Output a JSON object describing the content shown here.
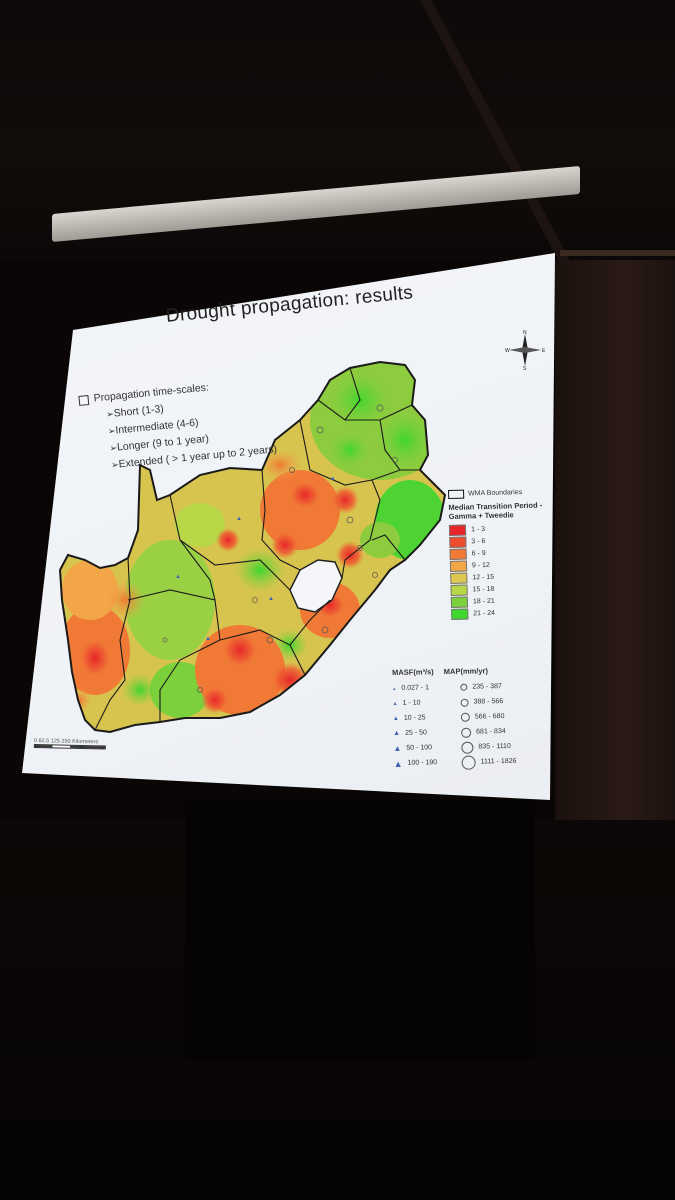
{
  "slide": {
    "title": "Drought propagation: results",
    "bullets_heading": "Propagation time-scales:",
    "bullets": [
      "Short (1-3)",
      "Intermediate (4-6)",
      "Longer (9 to 1 year)",
      "Extended ( > 1 year up to 2 years)"
    ]
  },
  "compass": {
    "n": "N",
    "s": "S",
    "e": "E",
    "w": "W"
  },
  "legend": {
    "boundary_label": "WMA Boundaries",
    "title": "Median Transition Period - Gamma + Tweedie",
    "classes": [
      {
        "label": "1 - 3",
        "color": "#e8262a"
      },
      {
        "label": "3 - 6",
        "color": "#ee4b2f"
      },
      {
        "label": "6 - 9",
        "color": "#f07a35"
      },
      {
        "label": "9 - 12",
        "color": "#f2a648"
      },
      {
        "label": "12 - 15",
        "color": "#dcc850"
      },
      {
        "label": "15 - 18",
        "color": "#b8d848"
      },
      {
        "label": "18 - 21",
        "color": "#7cd03c"
      },
      {
        "label": "21 - 24",
        "color": "#3fd62e"
      }
    ]
  },
  "symbols": {
    "masf_header": "MASF(m³/s)",
    "map_header": "MAP(mm/yr)",
    "masf": [
      "0.027 - 1",
      "1 - 10",
      "10 - 25",
      "25 - 50",
      "50 - 100",
      "100 - 190"
    ],
    "map": [
      "235 - 387",
      "388 - 566",
      "566 - 680",
      "681 - 834",
      "835 - 1110",
      "1111 - 1826"
    ]
  },
  "scalebar": {
    "text": "0   62.5  125        250 Kilometers"
  }
}
